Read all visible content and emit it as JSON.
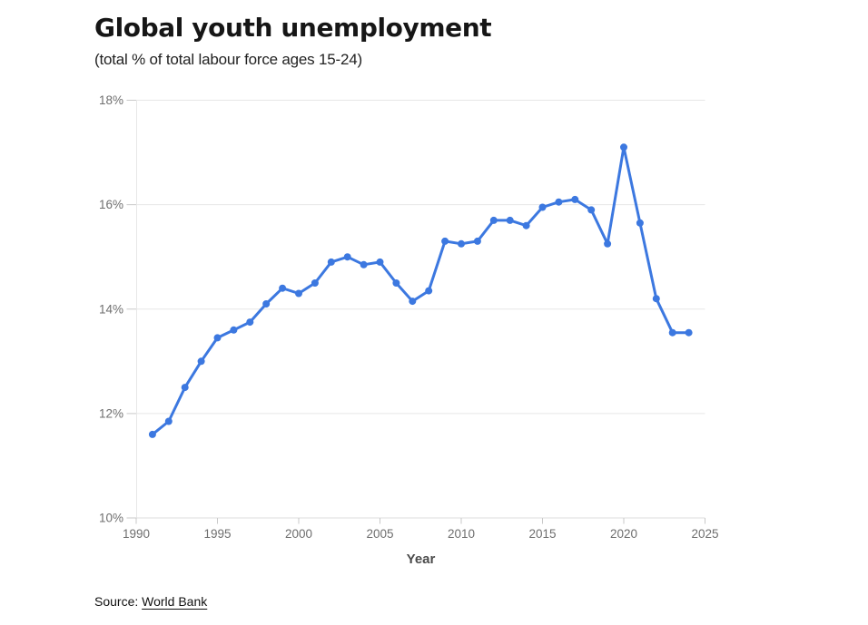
{
  "title": "Global youth unemployment",
  "subtitle": "(total % of total labour force ages 15-24)",
  "source": {
    "prefix": "Source: ",
    "link_text": "World Bank"
  },
  "colors": {
    "line": "#3c78e0",
    "marker": "#3c78e0",
    "grid": "#e7e7e7",
    "axis_line": "#dcdcdc",
    "tick_mark": "#c9c9c9",
    "tick_text": "#6e6e6e",
    "background": "#ffffff"
  },
  "chart_data": {
    "type": "line",
    "title": "Global youth unemployment",
    "subtitle": "(total % of total labour force ages 15-24)",
    "xlabel": "Year",
    "ylabel": "",
    "xlim": [
      1990,
      2025
    ],
    "ylim": [
      10,
      18
    ],
    "x_ticks": [
      1990,
      1995,
      2000,
      2005,
      2010,
      2015,
      2020,
      2025
    ],
    "y_ticks": [
      10,
      12,
      14,
      16,
      18
    ],
    "y_tick_labels": [
      "10%",
      "12%",
      "14%",
      "16%",
      "18%"
    ],
    "grid": "horizontal-only",
    "legend": false,
    "marker": "circle",
    "x": [
      1991,
      1992,
      1993,
      1994,
      1995,
      1996,
      1997,
      1998,
      1999,
      2000,
      2001,
      2002,
      2003,
      2004,
      2005,
      2006,
      2007,
      2008,
      2009,
      2010,
      2011,
      2012,
      2013,
      2014,
      2015,
      2016,
      2017,
      2018,
      2019,
      2020,
      2021,
      2022,
      2023,
      2024
    ],
    "series": [
      {
        "name": "Global youth unemployment (total % of total labour force ages 15-24)",
        "values": [
          11.6,
          11.85,
          12.5,
          13.0,
          13.45,
          13.6,
          13.75,
          14.1,
          14.4,
          14.3,
          14.5,
          14.9,
          15.0,
          14.85,
          14.9,
          14.5,
          14.15,
          14.35,
          15.3,
          15.25,
          15.3,
          15.7,
          15.7,
          15.6,
          15.95,
          16.05,
          16.1,
          15.9,
          15.25,
          17.1,
          15.65,
          14.2,
          13.55,
          13.55
        ]
      }
    ]
  }
}
